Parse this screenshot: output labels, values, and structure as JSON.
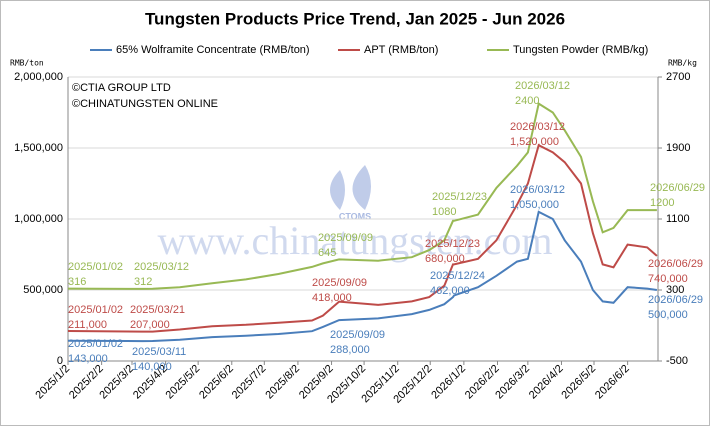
{
  "chart_data": {
    "type": "line",
    "title": "Tungsten Products Price Trend, Jan 2025 - Jun 2026",
    "y_label": "RMB/ton",
    "y2_label": "RMB/kg",
    "copyright": [
      "©CTIA GROUP LTD",
      "©CHINATUNGSTEN ONLINE"
    ],
    "watermark": "www.chinatungsten.com",
    "logo": "CTOMS",
    "legend": "top",
    "grid": true,
    "x": [
      "2025/01/02",
      "2025/03/11",
      "2025/03/12",
      "2025/03/21",
      "2025/04/15",
      "2025/05/15",
      "2025/06/15",
      "2025/07/15",
      "2025/08/15",
      "2025/08/25",
      "2025/09/09",
      "2025/10/15",
      "2025/11/15",
      "2025/12/01",
      "2025/12/15",
      "2025/12/23",
      "2025/12/24",
      "2026/01/15",
      "2026/02/01",
      "2026/02/20",
      "2026/03/02",
      "2026/03/12",
      "2026/03/25",
      "2026/04/05",
      "2026/04/20",
      "2026/05/01",
      "2026/05/10",
      "2026/05/20",
      "2026/06/02",
      "2026/06/20",
      "2026/06/29"
    ],
    "xlim": [
      "2025/01/02",
      "2026/06/30"
    ],
    "xticks": [
      "2025/1/2",
      "2025/2/2",
      "2025/3/2",
      "2025/4/2",
      "2025/5/2",
      "2025/6/2",
      "2025/7/2",
      "2025/8/2",
      "2025/9/2",
      "2025/10/2",
      "2025/11/2",
      "2025/12/2",
      "2026/1/2",
      "2026/2/2",
      "2026/3/2",
      "2026/4/2",
      "2026/5/2",
      "2026/6/2"
    ],
    "ylim": [
      0,
      2000000
    ],
    "yticks": [
      0,
      {
        "value": 500000,
        "label": "500,000"
      },
      {
        "value": 1000000,
        "label": "1,000,000"
      },
      {
        "value": 1500000,
        "label": "1,500,000"
      },
      {
        "value": 2000000,
        "label": "2,000,000"
      }
    ],
    "y2lim": [
      -500,
      2700
    ],
    "y2ticks": [
      -500,
      300,
      1100,
      1900,
      2700
    ],
    "series": [
      {
        "name": "65% Wolframite Concentrate (RMB/ton)",
        "color": "#4a7ebb",
        "values": [
          143000,
          140000,
          140000,
          141000,
          150000,
          168000,
          178000,
          190000,
          210000,
          240000,
          288000,
          300000,
          330000,
          360000,
          400000,
          450000,
          462000,
          520000,
          600000,
          700000,
          720000,
          1050000,
          1000000,
          850000,
          700000,
          500000,
          420000,
          410000,
          520000,
          510000,
          500000
        ],
        "annotations": [
          {
            "date": "2025/01/02",
            "label": "143,000"
          },
          {
            "date": "2025/03/11",
            "label": "140,000"
          },
          {
            "date": "2025/09/09",
            "label": "288,000"
          },
          {
            "date": "2025/12/24",
            "label": "462,000"
          },
          {
            "date": "2026/03/12",
            "label": "1,050,000"
          },
          {
            "date": "2026/06/29",
            "label": "500,000"
          }
        ]
      },
      {
        "name": "APT (RMB/ton)",
        "color": "#be4b48",
        "values": [
          211000,
          207000,
          207000,
          207000,
          222000,
          245000,
          255000,
          270000,
          285000,
          320000,
          418000,
          395000,
          420000,
          450000,
          530000,
          680000,
          680000,
          720000,
          850000,
          1100000,
          1250000,
          1520000,
          1470000,
          1400000,
          1250000,
          900000,
          680000,
          660000,
          820000,
          800000,
          740000
        ],
        "annotations": [
          {
            "date": "2025/01/02",
            "label": "211,000"
          },
          {
            "date": "2025/03/21",
            "label": "207,000"
          },
          {
            "date": "2025/09/09",
            "label": "418,000"
          },
          {
            "date": "2025/12/23",
            "label": "680,000"
          },
          {
            "date": "2026/03/12",
            "label": "1,520,000"
          },
          {
            "date": "2026/06/29",
            "label": "740,000"
          }
        ]
      },
      {
        "name": "Tungsten Powder (RMB/kg)",
        "color": "#98b954",
        "axis": "y2",
        "values": [
          316,
          312,
          312,
          314,
          330,
          375,
          420,
          480,
          560,
          600,
          645,
          630,
          670,
          750,
          860,
          1080,
          1080,
          1150,
          1450,
          1700,
          1850,
          2400,
          2300,
          2100,
          1800,
          1300,
          950,
          1000,
          1200,
          1200,
          1200
        ],
        "annotations": [
          {
            "date": "2025/01/02",
            "label": "316"
          },
          {
            "date": "2025/03/12",
            "label": "312"
          },
          {
            "date": "2025/09/09",
            "label": "645"
          },
          {
            "date": "2025/12/23",
            "label": "1080"
          },
          {
            "date": "2026/03/12",
            "label": "2400"
          },
          {
            "date": "2026/06/29",
            "label": "1200"
          }
        ]
      }
    ]
  }
}
